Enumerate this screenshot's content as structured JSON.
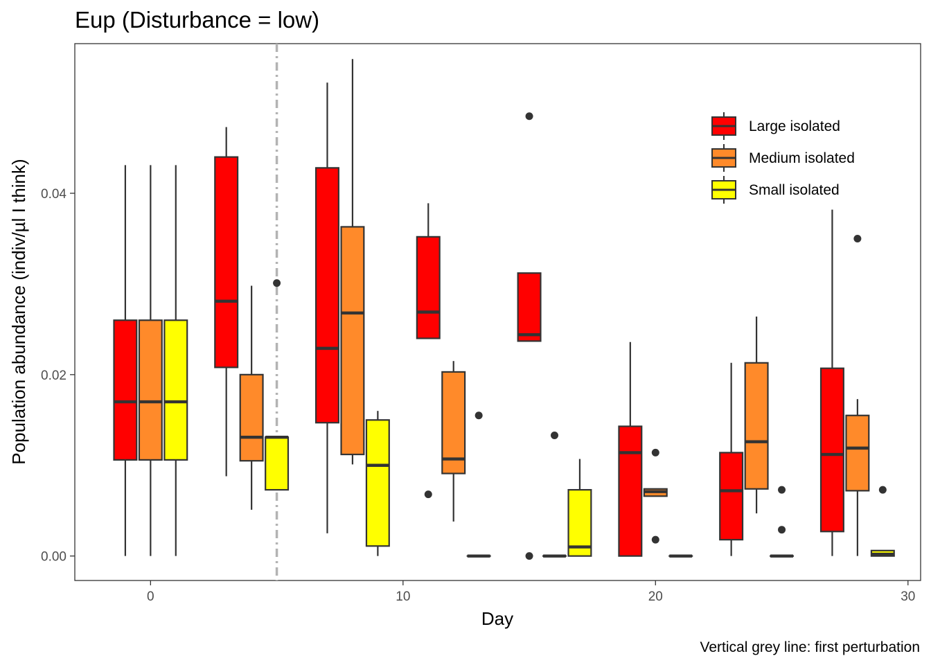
{
  "chart_data": {
    "type": "boxplot",
    "title": "Eup (Disturbance = low)",
    "caption": "Vertical grey line: first perturbation",
    "xlabel": "Day",
    "ylabel": "Population abundance (indiv/µl I think)",
    "xlim": [
      -3,
      30.5
    ],
    "ylim": [
      -0.0027,
      0.0565
    ],
    "x_ticks": [
      0,
      10,
      20,
      30
    ],
    "y_ticks": [
      0.0,
      0.02,
      0.04
    ],
    "y_tick_labels": [
      "0.00",
      "0.02",
      "0.04"
    ],
    "grid": false,
    "legend_position": "top-right",
    "vline": {
      "x": 5,
      "color": "#b3b3b3",
      "style": "dot-dash"
    },
    "series": [
      {
        "name": "Large isolated",
        "color": "#ff0000",
        "boxes": [
          {
            "day": -1,
            "lower_whisker": 0.0,
            "q1": 0.0106,
            "median": 0.017,
            "q3": 0.026,
            "upper_whisker": 0.0431,
            "outliers": []
          },
          {
            "day": 3,
            "lower_whisker": 0.0088,
            "q1": 0.0208,
            "median": 0.0281,
            "q3": 0.044,
            "upper_whisker": 0.0473,
            "outliers": []
          },
          {
            "day": 7,
            "lower_whisker": 0.0025,
            "q1": 0.0147,
            "median": 0.0229,
            "q3": 0.0428,
            "upper_whisker": 0.0522,
            "outliers": []
          },
          {
            "day": 11,
            "lower_whisker": 0.024,
            "q1": 0.024,
            "median": 0.0269,
            "q3": 0.0352,
            "upper_whisker": 0.0389,
            "outliers": [
              0.0068
            ]
          },
          {
            "day": 15,
            "lower_whisker": 0.0237,
            "q1": 0.0237,
            "median": 0.0244,
            "q3": 0.0312,
            "upper_whisker": 0.0312,
            "outliers": [
              0.0485,
              0.0
            ]
          },
          {
            "day": 19,
            "lower_whisker": 0.0,
            "q1": 0.0,
            "median": 0.0114,
            "q3": 0.0143,
            "upper_whisker": 0.0236,
            "outliers": []
          },
          {
            "day": 23,
            "lower_whisker": 0.0,
            "q1": 0.0018,
            "median": 0.0072,
            "q3": 0.0114,
            "upper_whisker": 0.0213,
            "outliers": []
          },
          {
            "day": 27,
            "lower_whisker": 0.0,
            "q1": 0.0027,
            "median": 0.0112,
            "q3": 0.0207,
            "upper_whisker": 0.0382,
            "outliers": []
          }
        ]
      },
      {
        "name": "Medium isolated",
        "color": "#ff8a2a",
        "boxes": [
          {
            "day": 0,
            "lower_whisker": 0.0,
            "q1": 0.0106,
            "median": 0.017,
            "q3": 0.026,
            "upper_whisker": 0.0431,
            "outliers": []
          },
          {
            "day": 4,
            "lower_whisker": 0.0051,
            "q1": 0.0105,
            "median": 0.0131,
            "q3": 0.02,
            "upper_whisker": 0.0298,
            "outliers": []
          },
          {
            "day": 8,
            "lower_whisker": 0.0101,
            "q1": 0.0112,
            "median": 0.0268,
            "q3": 0.0363,
            "upper_whisker": 0.0548,
            "outliers": []
          },
          {
            "day": 12,
            "lower_whisker": 0.0038,
            "q1": 0.0091,
            "median": 0.0107,
            "q3": 0.0203,
            "upper_whisker": 0.0215,
            "outliers": []
          },
          {
            "day": 16,
            "lower_whisker": 0.0,
            "q1": 0.0,
            "median": 0.0,
            "q3": 0.0,
            "upper_whisker": 0.0,
            "outliers": [
              0.0133
            ]
          },
          {
            "day": 20,
            "lower_whisker": 0.0066,
            "q1": 0.0066,
            "median": 0.0071,
            "q3": 0.0074,
            "upper_whisker": 0.0074,
            "outliers": [
              0.0114,
              0.0018
            ]
          },
          {
            "day": 24,
            "lower_whisker": 0.0047,
            "q1": 0.0074,
            "median": 0.0126,
            "q3": 0.0213,
            "upper_whisker": 0.0264,
            "outliers": []
          },
          {
            "day": 28,
            "lower_whisker": 0.0,
            "q1": 0.0072,
            "median": 0.0119,
            "q3": 0.0155,
            "upper_whisker": 0.0173,
            "outliers": [
              0.035
            ]
          }
        ]
      },
      {
        "name": "Small isolated",
        "color": "#ffff00",
        "boxes": [
          {
            "day": 1,
            "lower_whisker": 0.0,
            "q1": 0.0106,
            "median": 0.017,
            "q3": 0.026,
            "upper_whisker": 0.0431,
            "outliers": []
          },
          {
            "day": 5,
            "lower_whisker": 0.0073,
            "q1": 0.0073,
            "median": 0.0131,
            "q3": 0.0131,
            "upper_whisker": 0.0131,
            "outliers": [
              0.0301
            ]
          },
          {
            "day": 9,
            "lower_whisker": 0.0,
            "q1": 0.0011,
            "median": 0.01,
            "q3": 0.015,
            "upper_whisker": 0.016,
            "outliers": []
          },
          {
            "day": 13,
            "lower_whisker": 0.0,
            "q1": 0.0,
            "median": 0.0,
            "q3": 0.0,
            "upper_whisker": 0.0,
            "outliers": [
              0.0155
            ]
          },
          {
            "day": 17,
            "lower_whisker": 0.0,
            "q1": 0.0,
            "median": 0.001,
            "q3": 0.0073,
            "upper_whisker": 0.0107,
            "outliers": []
          },
          {
            "day": 21,
            "lower_whisker": 0.0,
            "q1": 0.0,
            "median": 0.0,
            "q3": 0.0,
            "upper_whisker": 0.0,
            "outliers": []
          },
          {
            "day": 25,
            "lower_whisker": 0.0,
            "q1": 0.0,
            "median": 0.0,
            "q3": 0.0,
            "upper_whisker": 0.0,
            "outliers": [
              0.0073,
              0.0029
            ]
          },
          {
            "day": 29,
            "lower_whisker": 0.0,
            "q1": 0.0,
            "median": 0.0002,
            "q3": 0.0006,
            "upper_whisker": 0.0006,
            "outliers": [
              0.0073
            ]
          }
        ]
      }
    ]
  }
}
